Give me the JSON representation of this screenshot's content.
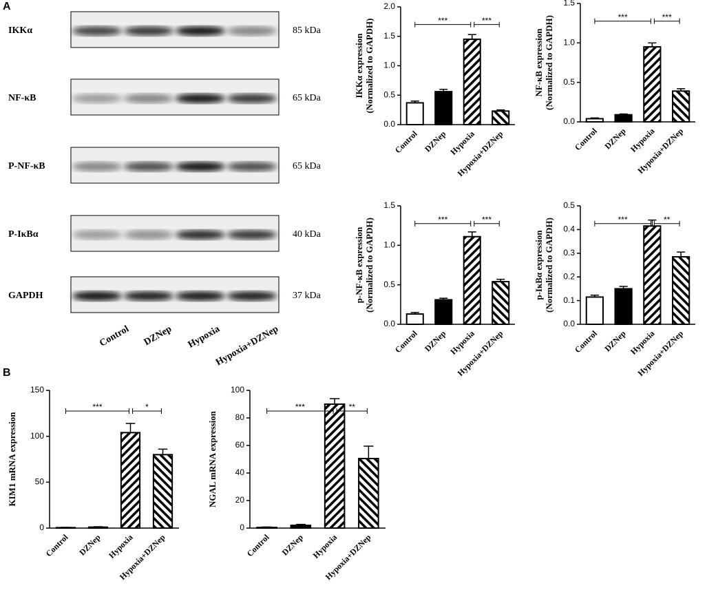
{
  "panels": [
    "A",
    "B"
  ],
  "blot": {
    "rows": [
      {
        "protein": "IKKα",
        "size": "85 kDa"
      },
      {
        "protein": "NF-κB",
        "size": "65 kDa"
      },
      {
        "protein": "P-NF-κB",
        "size": "65 kDa"
      },
      {
        "protein": "P-IκBα",
        "size": "40 kDa"
      },
      {
        "protein": "GAPDH",
        "size": "37 kDa"
      }
    ],
    "lanes": [
      "Control",
      "DZNep",
      "Hypoxia",
      "Hypoxia+DZNep"
    ]
  },
  "chart_data": [
    {
      "type": "bar",
      "ylabel": [
        "IKKα expression",
        "(Normalized to GAPDH)"
      ],
      "categories": [
        "Control",
        "DZNep",
        "Hypoxia",
        "Hypoxia+DZNep"
      ],
      "values": [
        0.37,
        0.56,
        1.45,
        0.23
      ],
      "errors": [
        0.03,
        0.04,
        0.08,
        0.02
      ],
      "fills": [
        "white",
        "black",
        "hatch",
        "hatch-reverse"
      ],
      "ylim": [
        0,
        2
      ],
      "yticks": [
        {
          "value": 0,
          "label": "0.0"
        },
        0.5,
        {
          "value": 1,
          "label": "1.0"
        },
        1.5,
        {
          "value": 2,
          "label": "2.0"
        }
      ],
      "comparisons": [
        {
          "from": "Control",
          "to": "Hypoxia",
          "label": "***"
        },
        {
          "from": "Hypoxia",
          "to": "Hypoxia+DZNep",
          "label": "***"
        }
      ]
    },
    {
      "type": "bar",
      "ylabel": [
        "NF-κB expression",
        "(Normalized to GAPDH)"
      ],
      "categories": [
        "Control",
        "DZNep",
        "Hypoxia",
        "Hypoxia+DZNep"
      ],
      "values": [
        0.04,
        0.09,
        0.95,
        0.39
      ],
      "errors": [
        0.01,
        0.01,
        0.05,
        0.03
      ],
      "fills": [
        "white",
        "black",
        "hatch",
        "hatch-reverse"
      ],
      "ylim": [
        0,
        1.5
      ],
      "yticks": [
        {
          "value": 0,
          "label": "0.0"
        },
        0.5,
        {
          "value": 1,
          "label": "1.0"
        },
        1.5
      ],
      "comparisons": [
        {
          "from": "Control",
          "to": "Hypoxia",
          "label": "***"
        },
        {
          "from": "Hypoxia",
          "to": "Hypoxia+DZNep",
          "label": "***"
        }
      ]
    },
    {
      "type": "bar",
      "ylabel": [
        "p-NF-κB expression",
        "(Normalized to GAPDH)"
      ],
      "categories": [
        "Control",
        "DZNep",
        "Hypoxia",
        "Hypoxia+DZNep"
      ],
      "values": [
        0.13,
        0.31,
        1.11,
        0.54
      ],
      "errors": [
        0.02,
        0.02,
        0.06,
        0.03
      ],
      "fills": [
        "white",
        "black",
        "hatch",
        "hatch-reverse"
      ],
      "ylim": [
        0,
        1.5
      ],
      "yticks": [
        {
          "value": 0,
          "label": "0.0"
        },
        0.5,
        {
          "value": 1,
          "label": "1.0"
        },
        1.5
      ],
      "comparisons": [
        {
          "from": "Control",
          "to": "Hypoxia",
          "label": "***"
        },
        {
          "from": "Hypoxia",
          "to": "Hypoxia+DZNep",
          "label": "***"
        }
      ]
    },
    {
      "type": "bar",
      "ylabel": [
        "p-IκBα expression",
        "(Normalized to GAPDH)"
      ],
      "categories": [
        "Control",
        "DZNep",
        "Hypoxia",
        "Hypoxia+DZNep"
      ],
      "values": [
        0.115,
        0.15,
        0.415,
        0.285
      ],
      "errors": [
        0.008,
        0.01,
        0.025,
        0.02
      ],
      "fills": [
        "white",
        "black",
        "hatch",
        "hatch-reverse"
      ],
      "ylim": [
        0,
        0.5
      ],
      "yticks": [
        {
          "value": 0,
          "label": "0.0"
        },
        0.1,
        0.2,
        0.3,
        0.4,
        0.5
      ],
      "comparisons": [
        {
          "from": "Control",
          "to": "Hypoxia",
          "label": "***"
        },
        {
          "from": "Hypoxia",
          "to": "Hypoxia+DZNep",
          "label": "**"
        }
      ]
    },
    {
      "type": "bar",
      "ylabel": [
        "KIM1 mRNA expression"
      ],
      "categories": [
        "Control",
        "DZNep",
        "Hypoxia",
        "Hypoxia+DZNep"
      ],
      "values": [
        0.5,
        1,
        104,
        80
      ],
      "errors": [
        0.3,
        0.5,
        10,
        6
      ],
      "fills": [
        "white",
        "black",
        "hatch",
        "hatch-reverse"
      ],
      "ylim": [
        0,
        150
      ],
      "yticks": [
        0,
        50,
        100,
        150
      ],
      "comparisons": [
        {
          "from": "Control",
          "to": "Hypoxia",
          "label": "***"
        },
        {
          "from": "Hypoxia",
          "to": "Hypoxia+DZNep",
          "label": "*"
        }
      ]
    },
    {
      "type": "bar",
      "ylabel": [
        "NGAL mRNA expression"
      ],
      "categories": [
        "Control",
        "DZNep",
        "Hypoxia",
        "Hypoxia+DZNep"
      ],
      "values": [
        0.5,
        2,
        90,
        50.5
      ],
      "errors": [
        0.3,
        0.7,
        4,
        9
      ],
      "fills": [
        "white",
        "black",
        "hatch",
        "hatch-reverse"
      ],
      "ylim": [
        0,
        100
      ],
      "yticks": [
        0,
        20,
        40,
        60,
        80,
        100
      ],
      "comparisons": [
        {
          "from": "Control",
          "to": "Hypoxia",
          "label": "***"
        },
        {
          "from": "Hypoxia",
          "to": "Hypoxia+DZNep",
          "label": "**"
        }
      ]
    }
  ]
}
